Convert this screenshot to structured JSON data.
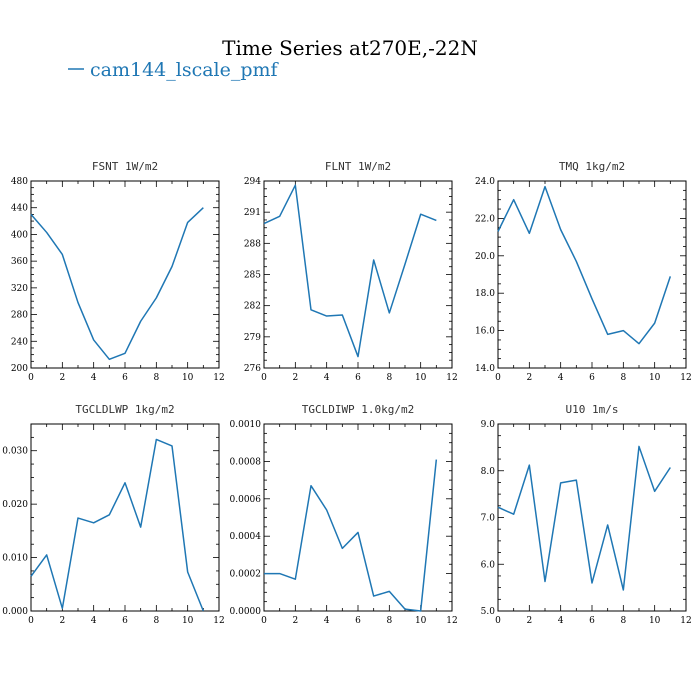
{
  "figure": {
    "title": "Time Series at270E,-22N",
    "legend": [
      {
        "name": "cam144_lscale_pmf",
        "color": "#1f77b4"
      }
    ]
  },
  "chart_data": [
    {
      "type": "line",
      "title": "FSNT   1W/m2",
      "x": [
        0,
        1,
        2,
        3,
        4,
        5,
        6,
        7,
        8,
        9,
        10,
        11
      ],
      "series": [
        {
          "name": "cam144_lscale_pmf",
          "values": [
            430,
            403,
            370,
            298,
            242,
            213,
            222,
            270,
            305,
            352,
            418,
            440
          ]
        }
      ],
      "xlim": [
        0,
        12
      ],
      "ylim": [
        200,
        480
      ],
      "xticks": [
        "0",
        "2",
        "4",
        "6",
        "8",
        "10",
        "12"
      ],
      "xtick_values": [
        0,
        2,
        4,
        6,
        8,
        10,
        12
      ],
      "yticks": [
        "200",
        "240",
        "280",
        "320",
        "360",
        "400",
        "440",
        "480"
      ],
      "ytick_values": [
        200,
        240,
        280,
        320,
        360,
        400,
        440,
        480
      ],
      "grid": false
    },
    {
      "type": "line",
      "title": "FLNT   1W/m2",
      "x": [
        0,
        1,
        2,
        3,
        4,
        5,
        6,
        7,
        8,
        9,
        10,
        11
      ],
      "series": [
        {
          "name": "cam144_lscale_pmf",
          "values": [
            289.9,
            290.6,
            293.6,
            281.6,
            281.0,
            281.1,
            277.1,
            286.4,
            281.3,
            286.0,
            290.8,
            290.2
          ]
        }
      ],
      "xlim": [
        0,
        12
      ],
      "ylim": [
        276,
        294
      ],
      "xticks": [
        "0",
        "2",
        "4",
        "6",
        "8",
        "10",
        "12"
      ],
      "xtick_values": [
        0,
        2,
        4,
        6,
        8,
        10,
        12
      ],
      "yticks": [
        "276",
        "279",
        "282",
        "285",
        "288",
        "291",
        "294"
      ],
      "ytick_values": [
        276,
        279,
        282,
        285,
        288,
        291,
        294
      ],
      "grid": false
    },
    {
      "type": "line",
      "title": "TMQ   1kg/m2",
      "x": [
        0,
        1,
        2,
        3,
        4,
        5,
        6,
        7,
        8,
        9,
        10,
        11
      ],
      "series": [
        {
          "name": "cam144_lscale_pmf",
          "values": [
            21.3,
            23.0,
            21.2,
            23.7,
            21.4,
            19.7,
            17.7,
            15.8,
            16.0,
            15.3,
            16.4,
            18.9
          ]
        }
      ],
      "xlim": [
        0,
        12
      ],
      "ylim": [
        14.0,
        24.0
      ],
      "xticks": [
        "0",
        "2",
        "4",
        "6",
        "8",
        "10",
        "12"
      ],
      "xtick_values": [
        0,
        2,
        4,
        6,
        8,
        10,
        12
      ],
      "yticks": [
        "14.0",
        "16.0",
        "18.0",
        "20.0",
        "22.0",
        "24.0"
      ],
      "ytick_values": [
        14,
        16,
        18,
        20,
        22,
        24
      ],
      "grid": false
    },
    {
      "type": "line",
      "title": "TGCLDLWP   1kg/m2",
      "x": [
        0,
        1,
        2,
        3,
        4,
        5,
        6,
        7,
        8,
        9,
        10,
        11
      ],
      "series": [
        {
          "name": "cam144_lscale_pmf",
          "values": [
            0.0065,
            0.0105,
            0.0005,
            0.0174,
            0.0165,
            0.018,
            0.024,
            0.0157,
            0.0321,
            0.0309,
            0.0073,
            0.0
          ]
        }
      ],
      "xlim": [
        0,
        12
      ],
      "ylim": [
        0,
        0.035
      ],
      "xticks": [
        "0",
        "2",
        "4",
        "6",
        "8",
        "10",
        "12"
      ],
      "xtick_values": [
        0,
        2,
        4,
        6,
        8,
        10,
        12
      ],
      "yticks": [
        "0.000",
        "0.010",
        "0.020",
        "0.030"
      ],
      "ytick_values": [
        0,
        0.01,
        0.02,
        0.03
      ],
      "grid": false
    },
    {
      "type": "line",
      "title": "TGCLDIWP   1.0kg/m2",
      "x": [
        0,
        1,
        2,
        3,
        4,
        5,
        6,
        7,
        8,
        9,
        10,
        11
      ],
      "series": [
        {
          "name": "cam144_lscale_pmf",
          "values": [
            0.0002,
            0.0002,
            0.00017,
            0.00067,
            0.00054,
            0.000335,
            0.00042,
            8e-05,
            0.000105,
            1e-05,
            0.0,
            0.00081
          ]
        }
      ],
      "xlim": [
        0,
        12
      ],
      "ylim": [
        0,
        0.001
      ],
      "xticks": [
        "0",
        "2",
        "4",
        "6",
        "8",
        "10",
        "12"
      ],
      "xtick_values": [
        0,
        2,
        4,
        6,
        8,
        10,
        12
      ],
      "yticks": [
        "0.0000",
        "0.0002",
        "0.0004",
        "0.0006",
        "0.0008",
        "0.0010"
      ],
      "ytick_values": [
        0,
        0.0002,
        0.0004,
        0.0006,
        0.0008,
        0.001
      ],
      "grid": false
    },
    {
      "type": "line",
      "title": "U10   1m/s",
      "x": [
        0,
        1,
        2,
        3,
        4,
        5,
        6,
        7,
        8,
        9,
        10,
        11
      ],
      "series": [
        {
          "name": "cam144_lscale_pmf",
          "values": [
            7.22,
            7.07,
            8.12,
            5.63,
            7.74,
            7.8,
            5.6,
            6.84,
            5.45,
            8.52,
            7.56,
            8.07
          ]
        }
      ],
      "xlim": [
        0,
        12
      ],
      "ylim": [
        5.0,
        9.0
      ],
      "xticks": [
        "0",
        "2",
        "4",
        "6",
        "8",
        "10",
        "12"
      ],
      "xtick_values": [
        0,
        2,
        4,
        6,
        8,
        10,
        12
      ],
      "yticks": [
        "5.0",
        "6.0",
        "7.0",
        "8.0",
        "9.0"
      ],
      "ytick_values": [
        5,
        6,
        7,
        8,
        9
      ],
      "grid": false
    }
  ],
  "colors": {
    "line": "#1f77b4",
    "axis": "#000000"
  }
}
